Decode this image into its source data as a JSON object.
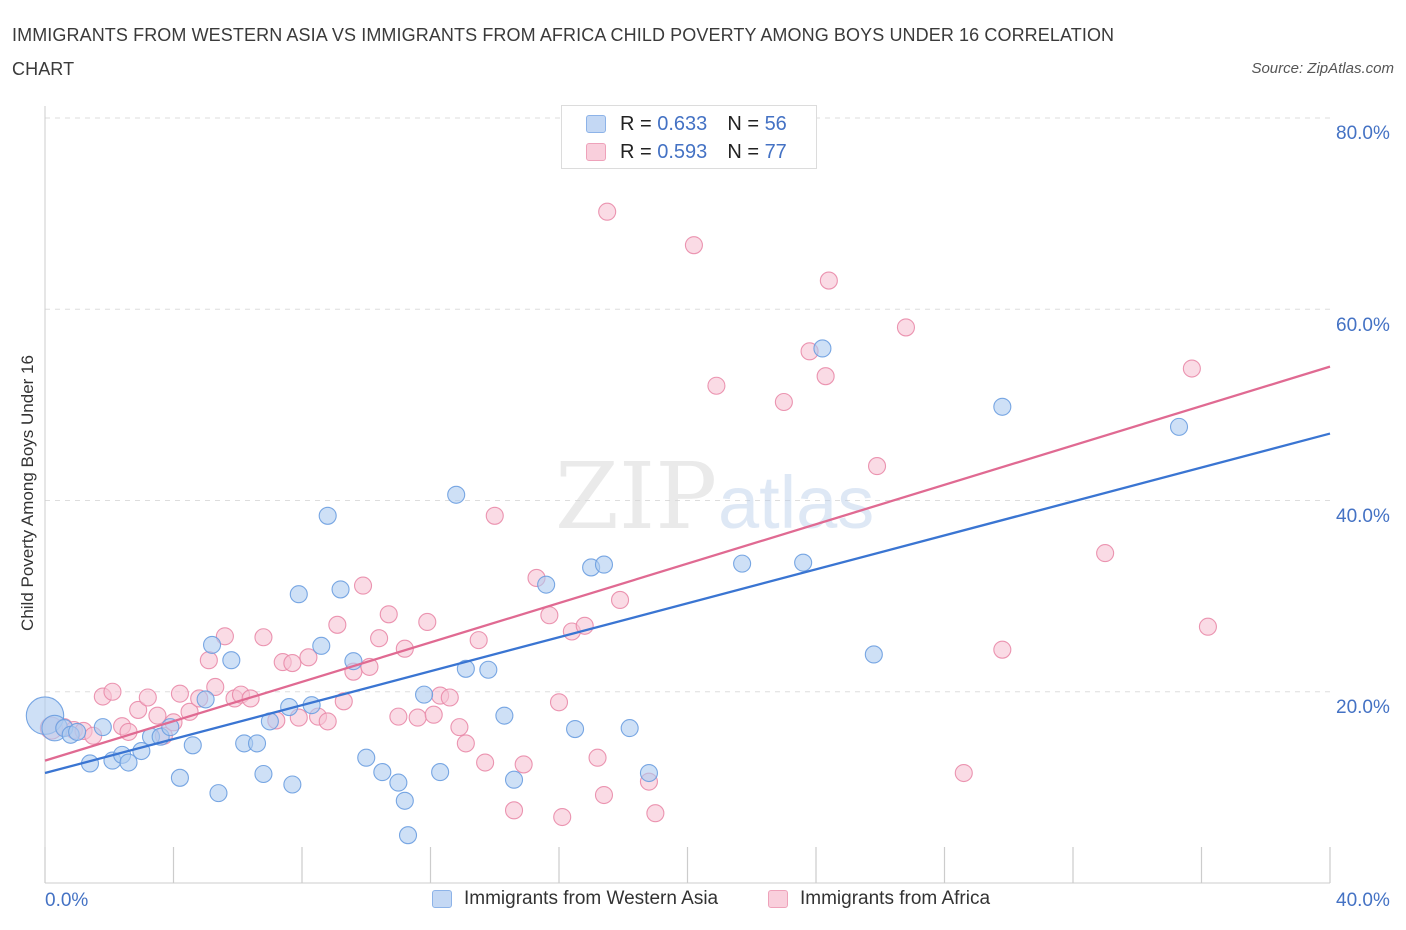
{
  "title": "IMMIGRANTS FROM WESTERN ASIA VS IMMIGRANTS FROM AFRICA CHILD POVERTY AMONG BOYS UNDER 16 CORRELATION CHART",
  "source": "Source: ZipAtlas.com",
  "watermark": {
    "zip": "ZIP",
    "atlas": "atlas"
  },
  "legend_top": [
    {
      "r_label": "R =",
      "r_value": "0.633",
      "n_label": "N =",
      "n_value": "56"
    },
    {
      "r_label": "R =",
      "r_value": "0.593",
      "n_label": "N =",
      "n_value": "77"
    }
  ],
  "colors": {
    "blue_fill": "#aecbf0",
    "blue_stroke": "#6a9de0",
    "blue_line": "#3a75d2",
    "pink_fill": "#f7c3d3",
    "pink_stroke": "#e98aa8",
    "pink_line": "#e06a92",
    "axis_text": "#4472c4",
    "grid": "#dddddd"
  },
  "chart_data": {
    "type": "scatter",
    "title": "IMMIGRANTS FROM WESTERN ASIA VS IMMIGRANTS FROM AFRICA CHILD POVERTY AMONG BOYS UNDER 16 CORRELATION CHART",
    "xlabel": "",
    "ylabel": "Child Poverty Among Boys Under 16",
    "xlim": [
      0,
      40
    ],
    "ylim": [
      0,
      80
    ],
    "x_tick_labels": [
      "0.0%",
      "40.0%"
    ],
    "y_tick_labels": [
      "20.0%",
      "40.0%",
      "60.0%",
      "80.0%"
    ],
    "y_ticks": [
      20,
      40,
      60,
      80
    ],
    "grid": true,
    "legend_position": "bottom",
    "series": [
      {
        "name": "Immigrants from Western Asia",
        "color": "#aecbf0",
        "r": 0.633,
        "n": 56,
        "trend": {
          "x": [
            0,
            40
          ],
          "y": [
            11.5,
            47.0
          ]
        },
        "points": [
          [
            0.0,
            17.5,
            2.2
          ],
          [
            0.3,
            16.2,
            1.5
          ],
          [
            0.6,
            16.2,
            1
          ],
          [
            0.8,
            15.5,
            1
          ],
          [
            1.0,
            15.8,
            1
          ],
          [
            1.4,
            12.5,
            1
          ],
          [
            1.8,
            16.3,
            1
          ],
          [
            2.1,
            12.8,
            1
          ],
          [
            2.4,
            13.4,
            1
          ],
          [
            2.6,
            12.6,
            1
          ],
          [
            3.0,
            13.8,
            1
          ],
          [
            3.3,
            15.3,
            1
          ],
          [
            3.6,
            15.3,
            1
          ],
          [
            3.9,
            16.3,
            1
          ],
          [
            4.2,
            11.0,
            1
          ],
          [
            4.6,
            14.4,
            1
          ],
          [
            5.0,
            19.2,
            1
          ],
          [
            5.2,
            24.9,
            1
          ],
          [
            5.4,
            9.4,
            1
          ],
          [
            5.8,
            23.3,
            1
          ],
          [
            6.2,
            14.6,
            1
          ],
          [
            6.6,
            14.6,
            1
          ],
          [
            6.8,
            11.4,
            1
          ],
          [
            7.0,
            16.9,
            1
          ],
          [
            7.6,
            18.4,
            1
          ],
          [
            7.7,
            10.3,
            1
          ],
          [
            7.9,
            30.2,
            1
          ],
          [
            8.3,
            18.6,
            1
          ],
          [
            8.6,
            24.8,
            1
          ],
          [
            8.8,
            38.4,
            1
          ],
          [
            9.2,
            30.7,
            1
          ],
          [
            9.6,
            23.2,
            1
          ],
          [
            10.0,
            13.1,
            1
          ],
          [
            10.5,
            11.6,
            1
          ],
          [
            11.0,
            10.5,
            1
          ],
          [
            11.2,
            8.6,
            1
          ],
          [
            11.3,
            5.0,
            1
          ],
          [
            11.8,
            19.7,
            1
          ],
          [
            12.3,
            11.6,
            1
          ],
          [
            12.8,
            40.6,
            1
          ],
          [
            13.1,
            22.4,
            1
          ],
          [
            13.8,
            22.3,
            1
          ],
          [
            14.3,
            17.5,
            1
          ],
          [
            14.6,
            10.8,
            1
          ],
          [
            15.6,
            31.2,
            1
          ],
          [
            16.5,
            16.1,
            1
          ],
          [
            17.0,
            33.0,
            1
          ],
          [
            17.4,
            33.3,
            1
          ],
          [
            18.2,
            16.2,
            1
          ],
          [
            18.8,
            11.5,
            1
          ],
          [
            21.7,
            33.4,
            1
          ],
          [
            23.6,
            33.5,
            1
          ],
          [
            24.2,
            55.9,
            1
          ],
          [
            25.8,
            23.9,
            1
          ],
          [
            29.8,
            49.8,
            1
          ],
          [
            35.3,
            47.7,
            1
          ]
        ]
      },
      {
        "name": "Immigrants from Africa",
        "color": "#f7c3d3",
        "r": 0.593,
        "n": 77,
        "trend": {
          "x": [
            0,
            40
          ],
          "y": [
            12.8,
            54.0
          ]
        },
        "points": [
          [
            0.2,
            16.2,
            1.3
          ],
          [
            0.6,
            16.3,
            1
          ],
          [
            0.9,
            16.0,
            1
          ],
          [
            1.2,
            15.9,
            1
          ],
          [
            1.5,
            15.4,
            1
          ],
          [
            1.8,
            19.5,
            1
          ],
          [
            2.1,
            20.0,
            1
          ],
          [
            2.4,
            16.4,
            1
          ],
          [
            2.6,
            15.8,
            1
          ],
          [
            2.9,
            18.1,
            1
          ],
          [
            3.2,
            19.4,
            1
          ],
          [
            3.5,
            17.5,
            1
          ],
          [
            3.7,
            15.4,
            1
          ],
          [
            4.0,
            16.8,
            1
          ],
          [
            4.2,
            19.8,
            1
          ],
          [
            4.5,
            17.9,
            1
          ],
          [
            4.8,
            19.3,
            1
          ],
          [
            5.1,
            23.3,
            1
          ],
          [
            5.3,
            20.5,
            1
          ],
          [
            5.6,
            25.8,
            1
          ],
          [
            5.9,
            19.3,
            1
          ],
          [
            6.1,
            19.7,
            1
          ],
          [
            6.4,
            19.3,
            1
          ],
          [
            6.8,
            25.7,
            1
          ],
          [
            7.2,
            17.0,
            1
          ],
          [
            7.4,
            23.1,
            1
          ],
          [
            7.7,
            23.0,
            1
          ],
          [
            7.9,
            17.3,
            1
          ],
          [
            8.2,
            23.6,
            1
          ],
          [
            8.5,
            17.4,
            1
          ],
          [
            8.8,
            16.9,
            1
          ],
          [
            9.1,
            27.0,
            1
          ],
          [
            9.3,
            19.0,
            1
          ],
          [
            9.6,
            22.1,
            1
          ],
          [
            9.9,
            31.1,
            1
          ],
          [
            10.1,
            22.6,
            1
          ],
          [
            10.4,
            25.6,
            1
          ],
          [
            10.7,
            28.1,
            1
          ],
          [
            11.0,
            17.4,
            1
          ],
          [
            11.2,
            24.5,
            1
          ],
          [
            11.6,
            17.3,
            1
          ],
          [
            11.9,
            27.3,
            1
          ],
          [
            12.1,
            17.6,
            1
          ],
          [
            12.3,
            19.6,
            1
          ],
          [
            12.6,
            19.4,
            1
          ],
          [
            12.9,
            16.3,
            1
          ],
          [
            13.1,
            14.6,
            1
          ],
          [
            13.5,
            25.4,
            1
          ],
          [
            13.7,
            12.6,
            1
          ],
          [
            14.0,
            38.4,
            1
          ],
          [
            14.6,
            7.6,
            1
          ],
          [
            14.9,
            12.4,
            1
          ],
          [
            15.3,
            31.9,
            1
          ],
          [
            15.7,
            28.0,
            1
          ],
          [
            16.0,
            18.9,
            1
          ],
          [
            16.1,
            6.9,
            1
          ],
          [
            16.4,
            26.3,
            1
          ],
          [
            16.8,
            26.9,
            1
          ],
          [
            17.2,
            13.1,
            1
          ],
          [
            17.4,
            9.2,
            1
          ],
          [
            17.5,
            70.2,
            1
          ],
          [
            17.9,
            29.6,
            1
          ],
          [
            18.8,
            10.6,
            1
          ],
          [
            19.0,
            7.3,
            1
          ],
          [
            20.2,
            66.7,
            1
          ],
          [
            20.9,
            52.0,
            1
          ],
          [
            23.0,
            50.3,
            1
          ],
          [
            23.8,
            55.6,
            1
          ],
          [
            24.3,
            53.0,
            1
          ],
          [
            24.4,
            63.0,
            1
          ],
          [
            25.9,
            43.6,
            1
          ],
          [
            26.8,
            58.1,
            1
          ],
          [
            28.6,
            11.5,
            1
          ],
          [
            29.8,
            24.4,
            1
          ],
          [
            33.0,
            34.5,
            1
          ],
          [
            35.7,
            53.8,
            1
          ],
          [
            36.2,
            26.8,
            1
          ]
        ]
      }
    ]
  },
  "legend_bottom": [
    {
      "label": "Immigrants from Western Asia"
    },
    {
      "label": "Immigrants from Africa"
    }
  ]
}
